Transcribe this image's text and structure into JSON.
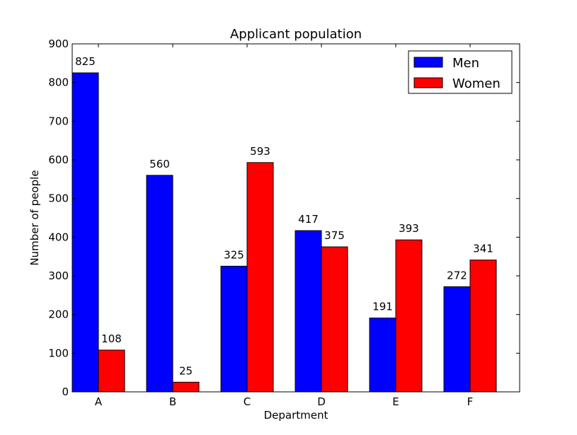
{
  "chart_data": {
    "type": "bar",
    "title": "Applicant population",
    "xlabel": "Department",
    "ylabel": "Number of people",
    "categories": [
      "A",
      "B",
      "C",
      "D",
      "E",
      "F"
    ],
    "series": [
      {
        "name": "Men",
        "color": "#0000ff",
        "values": [
          825,
          560,
          325,
          417,
          191,
          272
        ]
      },
      {
        "name": "Women",
        "color": "#ff0000",
        "values": [
          108,
          25,
          593,
          375,
          393,
          341
        ]
      }
    ],
    "ylim": [
      0,
      900
    ],
    "yticks": [
      0,
      100,
      200,
      300,
      400,
      500,
      600,
      700,
      800,
      900
    ],
    "grid": false,
    "legend_position": "top-right"
  }
}
